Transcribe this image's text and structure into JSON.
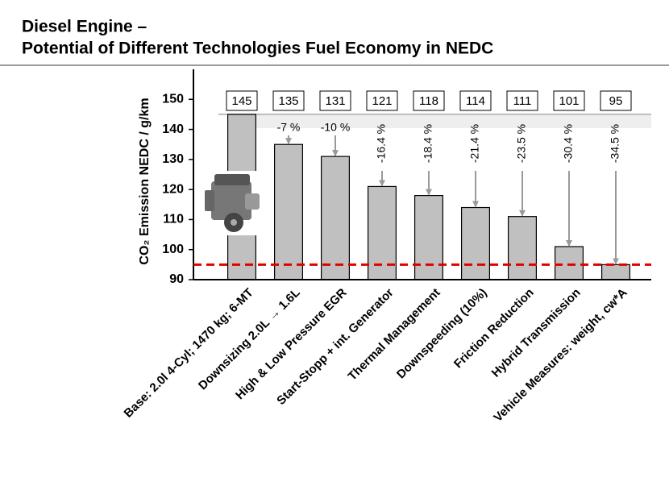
{
  "chart_data": {
    "type": "bar",
    "title": "Diesel Engine –",
    "subtitle": "Potential of Different Technologies Fuel Economy in NEDC",
    "y_label": "CO₂ Emission NEDC / g/km",
    "categories": [
      "Base: 2.0l 4-Cyl; 1470 kg; 6-MT",
      "Downsizing 2.0L → 1.6L",
      "High & Low Pressure EGR",
      "Start-Stopp + int. Generator",
      "Thermal Management",
      "Downspeeding (10%)",
      "Friction Reduction",
      "Hybrid Transmission",
      "Vehicle Measures: weight, cw*A"
    ],
    "values": [
      145,
      135,
      131,
      121,
      118,
      114,
      111,
      101,
      95
    ],
    "reduction_labels": [
      null,
      "-7 %",
      "-10 %",
      "-16.4 %",
      "-18.4 %",
      "-21.4 %",
      "-23.5 %",
      "-30.4 %",
      "-34.5 %"
    ],
    "color": "#c0c0c0",
    "target_line": 95,
    "target_color": "#e00000",
    "ylim": [
      90,
      160
    ],
    "yticks": [
      90,
      100,
      110,
      120,
      130,
      140,
      150
    ]
  }
}
